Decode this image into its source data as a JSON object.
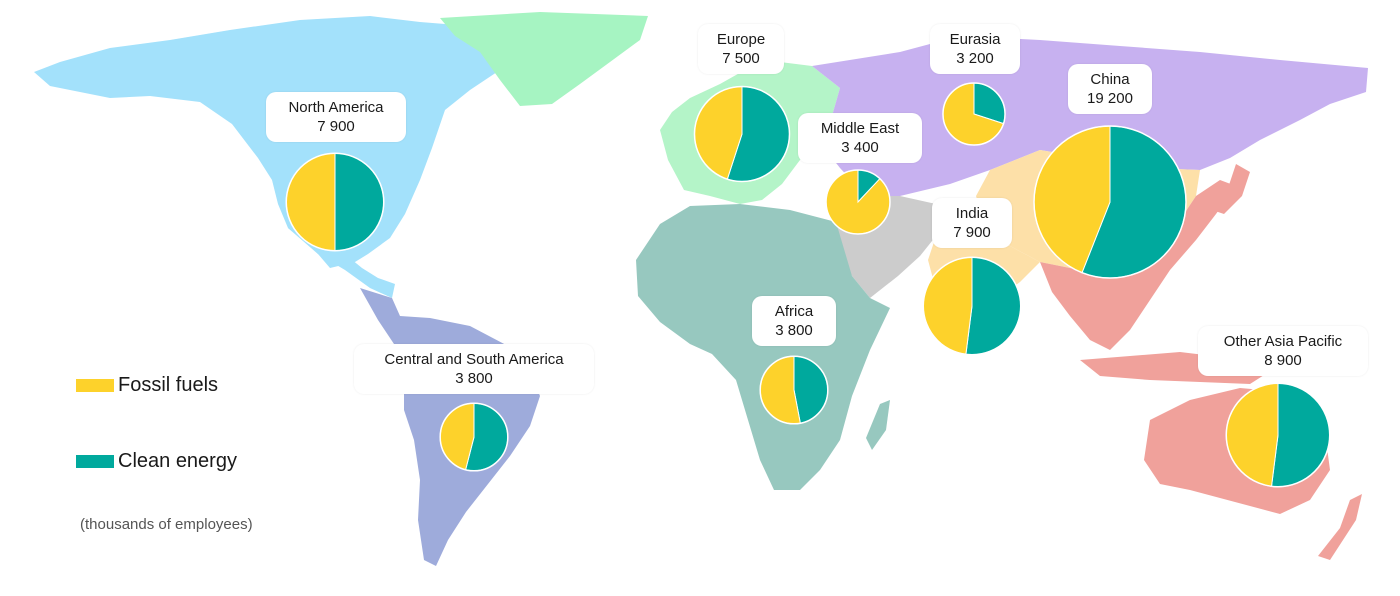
{
  "legend": {
    "fossil_label": "Fossil fuels",
    "clean_label": "Clean energy",
    "units": "(thousands of employees)"
  },
  "colors": {
    "fossil": "#fdd22b",
    "clean": "#00a99d",
    "north_america": "#a3e1fb",
    "greenland": "#a6f4c2",
    "europe": "#b4f4c8",
    "eurasia": "#c7b1f0",
    "china": "#fde0a8",
    "middle_east": "#cccccc",
    "africa": "#97c8bf",
    "south_america": "#9eabdb",
    "asia_pacific": "#f0a19b"
  },
  "chart_data": {
    "type": "pie",
    "unit": "thousands of employees",
    "regions": [
      {
        "name": "North America",
        "total_label": "7 900",
        "total": 7900,
        "fossil_share": 0.5,
        "clean_share": 0.5
      },
      {
        "name": "Central and South America",
        "total_label": "3 800",
        "total": 3800,
        "fossil_share": 0.46,
        "clean_share": 0.54
      },
      {
        "name": "Europe",
        "total_label": "7 500",
        "total": 7500,
        "fossil_share": 0.45,
        "clean_share": 0.55
      },
      {
        "name": "Eurasia",
        "total_label": "3 200",
        "total": 3200,
        "fossil_share": 0.7,
        "clean_share": 0.3
      },
      {
        "name": "Middle East",
        "total_label": "3 400",
        "total": 3400,
        "fossil_share": 0.88,
        "clean_share": 0.12
      },
      {
        "name": "Africa",
        "total_label": "3 800",
        "total": 3800,
        "fossil_share": 0.53,
        "clean_share": 0.47
      },
      {
        "name": "India",
        "total_label": "7 900",
        "total": 7900,
        "fossil_share": 0.48,
        "clean_share": 0.52
      },
      {
        "name": "China",
        "total_label": "19 200",
        "total": 19200,
        "fossil_share": 0.44,
        "clean_share": 0.56
      },
      {
        "name": "Other Asia Pacific",
        "total_label": "8 900",
        "total": 8900,
        "fossil_share": 0.48,
        "clean_share": 0.52
      }
    ]
  }
}
